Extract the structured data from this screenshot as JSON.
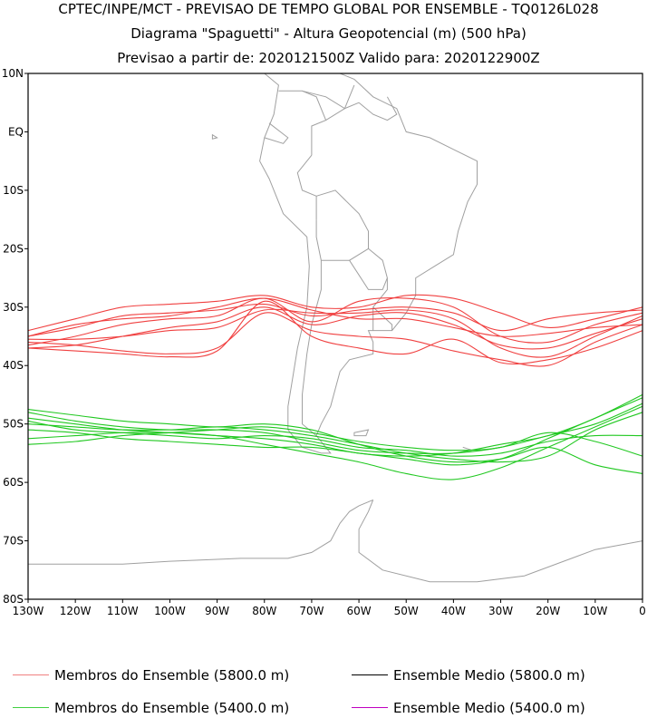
{
  "title": {
    "line1": "CPTEC/INPE/MCT - PREVISAO DE TEMPO GLOBAL POR ENSEMBLE - TQ0126L028",
    "line2": "Diagrama \"Spaguetti\" - Altura Geopotencial (m) (500 hPa)",
    "line3": "Previsao a partir de: 2020121500Z  Valido para: 2020122900Z"
  },
  "map": {
    "lat_range": [
      -80,
      10
    ],
    "lon_range": [
      -130,
      0
    ],
    "lat_labels": [
      "10N",
      "EQ",
      "10S",
      "20S",
      "30S",
      "40S",
      "50S",
      "60S",
      "70S",
      "80S"
    ],
    "lat_values": [
      10,
      0,
      -10,
      -20,
      -30,
      -40,
      -50,
      -60,
      -70,
      -80
    ],
    "lon_labels": [
      "130W",
      "120W",
      "110W",
      "100W",
      "90W",
      "80W",
      "70W",
      "60W",
      "50W",
      "40W",
      "30W",
      "20W",
      "10W",
      "0"
    ],
    "lon_values": [
      -130,
      -120,
      -110,
      -100,
      -90,
      -80,
      -70,
      -60,
      -50,
      -40,
      -30,
      -20,
      -10,
      0
    ],
    "coastline_color": "#a0a0a0",
    "contour_5800": {
      "color": "#f04040",
      "members": [
        [
          [
            -130,
            -35.0
          ],
          [
            -120,
            -33.5
          ],
          [
            -110,
            -31.5
          ],
          [
            -100,
            -31.0
          ],
          [
            -90,
            -30.5
          ],
          [
            -80,
            -29.5
          ],
          [
            -70,
            -31.5
          ],
          [
            -60,
            -30.5
          ],
          [
            -50,
            -30.0
          ],
          [
            -40,
            -31.0
          ],
          [
            -30,
            -34.0
          ],
          [
            -20,
            -32.0
          ],
          [
            -10,
            -31.0
          ],
          [
            0,
            -30.5
          ]
        ],
        [
          [
            -130,
            -36.5
          ],
          [
            -120,
            -35.0
          ],
          [
            -110,
            -33.0
          ],
          [
            -100,
            -32.0
          ],
          [
            -90,
            -31.5
          ],
          [
            -80,
            -28.5
          ],
          [
            -70,
            -32.5
          ],
          [
            -60,
            -29.0
          ],
          [
            -50,
            -28.5
          ],
          [
            -40,
            -30.0
          ],
          [
            -30,
            -35.0
          ],
          [
            -20,
            -36.0
          ],
          [
            -10,
            -33.0
          ],
          [
            0,
            -31.0
          ]
        ],
        [
          [
            -130,
            -37.0
          ],
          [
            -120,
            -36.5
          ],
          [
            -110,
            -35.0
          ],
          [
            -100,
            -33.5
          ],
          [
            -90,
            -32.5
          ],
          [
            -80,
            -30.0
          ],
          [
            -70,
            -33.0
          ],
          [
            -60,
            -31.5
          ],
          [
            -50,
            -31.0
          ],
          [
            -40,
            -33.0
          ],
          [
            -30,
            -36.5
          ],
          [
            -20,
            -37.0
          ],
          [
            -10,
            -34.5
          ],
          [
            0,
            -32.0
          ]
        ],
        [
          [
            -130,
            -34.0
          ],
          [
            -120,
            -32.0
          ],
          [
            -110,
            -30.0
          ],
          [
            -100,
            -29.5
          ],
          [
            -90,
            -29.0
          ],
          [
            -80,
            -28.0
          ],
          [
            -70,
            -30.0
          ],
          [
            -60,
            -30.0
          ],
          [
            -50,
            -28.0
          ],
          [
            -40,
            -28.5
          ],
          [
            -30,
            -31.0
          ],
          [
            -20,
            -33.5
          ],
          [
            -10,
            -32.0
          ],
          [
            0,
            -30.0
          ]
        ],
        [
          [
            -130,
            -36.0
          ],
          [
            -120,
            -36.5
          ],
          [
            -110,
            -37.5
          ],
          [
            -100,
            -38.0
          ],
          [
            -90,
            -37.0
          ],
          [
            -80,
            -31.0
          ],
          [
            -70,
            -34.0
          ],
          [
            -60,
            -35.0
          ],
          [
            -50,
            -35.5
          ],
          [
            -40,
            -37.5
          ],
          [
            -30,
            -39.0
          ],
          [
            -20,
            -40.0
          ],
          [
            -10,
            -36.0
          ],
          [
            0,
            -33.0
          ]
        ],
        [
          [
            -130,
            -35.5
          ],
          [
            -120,
            -35.5
          ],
          [
            -110,
            -35.0
          ],
          [
            -100,
            -34.0
          ],
          [
            -90,
            -33.5
          ],
          [
            -80,
            -30.5
          ],
          [
            -70,
            -31.0
          ],
          [
            -60,
            -31.0
          ],
          [
            -50,
            -30.5
          ],
          [
            -40,
            -32.0
          ],
          [
            -30,
            -37.0
          ],
          [
            -20,
            -38.5
          ],
          [
            -10,
            -35.0
          ],
          [
            0,
            -31.5
          ]
        ],
        [
          [
            -130,
            -37.0
          ],
          [
            -120,
            -37.5
          ],
          [
            -110,
            -38.0
          ],
          [
            -100,
            -38.5
          ],
          [
            -90,
            -37.5
          ],
          [
            -80,
            -29.0
          ],
          [
            -70,
            -35.0
          ],
          [
            -60,
            -37.0
          ],
          [
            -50,
            -38.0
          ],
          [
            -40,
            -35.5
          ],
          [
            -30,
            -39.5
          ],
          [
            -20,
            -39.0
          ],
          [
            -10,
            -37.0
          ],
          [
            0,
            -34.0
          ]
        ],
        [
          [
            -130,
            -35.0
          ],
          [
            -120,
            -33.0
          ],
          [
            -110,
            -32.0
          ],
          [
            -100,
            -31.5
          ],
          [
            -90,
            -30.0
          ],
          [
            -80,
            -28.5
          ],
          [
            -70,
            -30.5
          ],
          [
            -60,
            -32.0
          ],
          [
            -50,
            -32.0
          ],
          [
            -40,
            -33.5
          ],
          [
            -30,
            -35.0
          ],
          [
            -20,
            -34.5
          ],
          [
            -10,
            -33.5
          ],
          [
            0,
            -33.0
          ]
        ]
      ]
    },
    "contour_5400": {
      "color": "#20c820",
      "members": [
        [
          [
            -130,
            -48.0
          ],
          [
            -120,
            -49.5
          ],
          [
            -110,
            -50.5
          ],
          [
            -100,
            -51.0
          ],
          [
            -90,
            -51.0
          ],
          [
            -80,
            -51.5
          ],
          [
            -70,
            -53.0
          ],
          [
            -60,
            -54.5
          ],
          [
            -50,
            -55.0
          ],
          [
            -40,
            -55.0
          ],
          [
            -30,
            -54.0
          ],
          [
            -20,
            -52.0
          ],
          [
            -10,
            -50.0
          ],
          [
            0,
            -46.5
          ]
        ],
        [
          [
            -130,
            -49.0
          ],
          [
            -120,
            -50.0
          ],
          [
            -110,
            -51.0
          ],
          [
            -100,
            -51.5
          ],
          [
            -90,
            -52.0
          ],
          [
            -80,
            -52.5
          ],
          [
            -70,
            -53.5
          ],
          [
            -60,
            -55.0
          ],
          [
            -50,
            -55.5
          ],
          [
            -40,
            -55.0
          ],
          [
            -30,
            -53.5
          ],
          [
            -20,
            -52.0
          ],
          [
            -10,
            -49.0
          ],
          [
            0,
            -45.0
          ]
        ],
        [
          [
            -130,
            -50.0
          ],
          [
            -120,
            -50.5
          ],
          [
            -110,
            -51.0
          ],
          [
            -100,
            -51.0
          ],
          [
            -90,
            -50.5
          ],
          [
            -80,
            -51.0
          ],
          [
            -70,
            -52.0
          ],
          [
            -60,
            -53.5
          ],
          [
            -50,
            -55.0
          ],
          [
            -40,
            -56.0
          ],
          [
            -30,
            -56.5
          ],
          [
            -20,
            -55.5
          ],
          [
            -10,
            -51.0
          ],
          [
            0,
            -48.0
          ]
        ],
        [
          [
            -130,
            -52.5
          ],
          [
            -120,
            -52.0
          ],
          [
            -110,
            -51.5
          ],
          [
            -100,
            -51.5
          ],
          [
            -90,
            -52.0
          ],
          [
            -80,
            -53.5
          ],
          [
            -70,
            -55.0
          ],
          [
            -60,
            -56.5
          ],
          [
            -50,
            -58.5
          ],
          [
            -40,
            -59.5
          ],
          [
            -30,
            -57.5
          ],
          [
            -20,
            -54.0
          ],
          [
            -10,
            -50.5
          ],
          [
            0,
            -47.0
          ]
        ],
        [
          [
            -130,
            -53.5
          ],
          [
            -120,
            -53.0
          ],
          [
            -110,
            -52.0
          ],
          [
            -100,
            -51.5
          ],
          [
            -90,
            -51.0
          ],
          [
            -80,
            -50.5
          ],
          [
            -70,
            -51.5
          ],
          [
            -60,
            -53.0
          ],
          [
            -50,
            -54.0
          ],
          [
            -40,
            -54.5
          ],
          [
            -30,
            -54.0
          ],
          [
            -20,
            -51.5
          ],
          [
            -10,
            -53.0
          ],
          [
            0,
            -55.5
          ]
        ],
        [
          [
            -130,
            -47.5
          ],
          [
            -120,
            -48.5
          ],
          [
            -110,
            -49.5
          ],
          [
            -100,
            -50.0
          ],
          [
            -90,
            -50.5
          ],
          [
            -80,
            -50.0
          ],
          [
            -70,
            -51.0
          ],
          [
            -60,
            -53.5
          ],
          [
            -50,
            -55.5
          ],
          [
            -40,
            -56.5
          ],
          [
            -30,
            -56.0
          ],
          [
            -20,
            -54.0
          ],
          [
            -10,
            -57.0
          ],
          [
            0,
            -58.5
          ]
        ],
        [
          [
            -130,
            -51.0
          ],
          [
            -120,
            -51.5
          ],
          [
            -110,
            -52.5
          ],
          [
            -100,
            -53.0
          ],
          [
            -90,
            -53.5
          ],
          [
            -80,
            -54.0
          ],
          [
            -70,
            -54.0
          ],
          [
            -60,
            -55.0
          ],
          [
            -50,
            -56.0
          ],
          [
            -40,
            -57.0
          ],
          [
            -30,
            -56.0
          ],
          [
            -20,
            -52.5
          ],
          [
            -10,
            -49.0
          ],
          [
            0,
            -45.5
          ]
        ],
        [
          [
            -130,
            -49.5
          ],
          [
            -120,
            -51.0
          ],
          [
            -110,
            -51.5
          ],
          [
            -100,
            -52.0
          ],
          [
            -90,
            -52.5
          ],
          [
            -80,
            -52.0
          ],
          [
            -70,
            -52.5
          ],
          [
            -60,
            -54.0
          ],
          [
            -50,
            -54.5
          ],
          [
            -40,
            -55.5
          ],
          [
            -30,
            -55.0
          ],
          [
            -20,
            -53.0
          ],
          [
            -10,
            -52.0
          ],
          [
            0,
            -52.0
          ]
        ]
      ]
    }
  },
  "legend": {
    "members_5800": {
      "label": "Membros do Ensemble (5800.0 m)",
      "color": "#f08080"
    },
    "mean_5800": {
      "label": "Ensemble Medio (5800.0 m)",
      "color": "#000000"
    },
    "members_5400": {
      "label": "Membros do Ensemble (5400.0 m)",
      "color": "#40d040"
    },
    "mean_5400": {
      "label": "Ensemble Medio (5400.0 m)",
      "color": "#c000c0"
    }
  }
}
